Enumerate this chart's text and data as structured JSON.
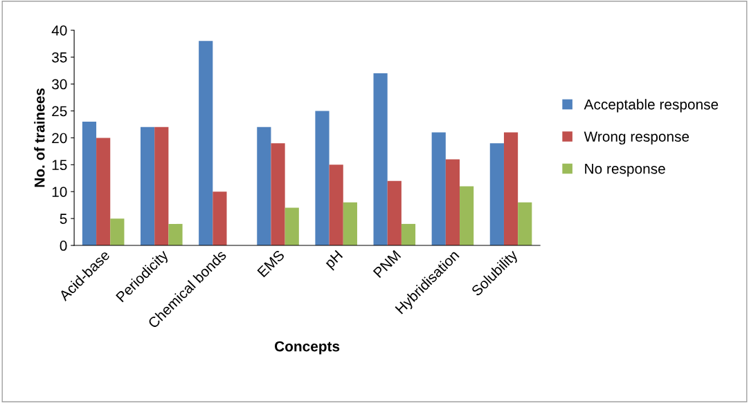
{
  "chart_data": {
    "type": "bar",
    "xlabel": "Concepts",
    "ylabel": "No. of trainees",
    "categories": [
      "Acid-base",
      "Periodicity",
      "Chemical bonds",
      "EMS",
      "pH",
      "PNM",
      "Hybridisation",
      "Solubility"
    ],
    "series": [
      {
        "name": "Acceptable response",
        "color": "#4f81bd",
        "values": [
          23,
          22,
          38,
          22,
          25,
          32,
          21,
          19
        ]
      },
      {
        "name": "Wrong response",
        "color": "#c0504d",
        "values": [
          20,
          22,
          10,
          19,
          15,
          12,
          16,
          21
        ]
      },
      {
        "name": "No response",
        "color": "#9bbb59",
        "values": [
          5,
          4,
          0,
          7,
          8,
          4,
          11,
          8
        ]
      }
    ],
    "ylim": [
      0,
      40
    ],
    "yticks": [
      0,
      5,
      10,
      15,
      20,
      25,
      30,
      35,
      40
    ],
    "grid": false,
    "legend": "right"
  }
}
